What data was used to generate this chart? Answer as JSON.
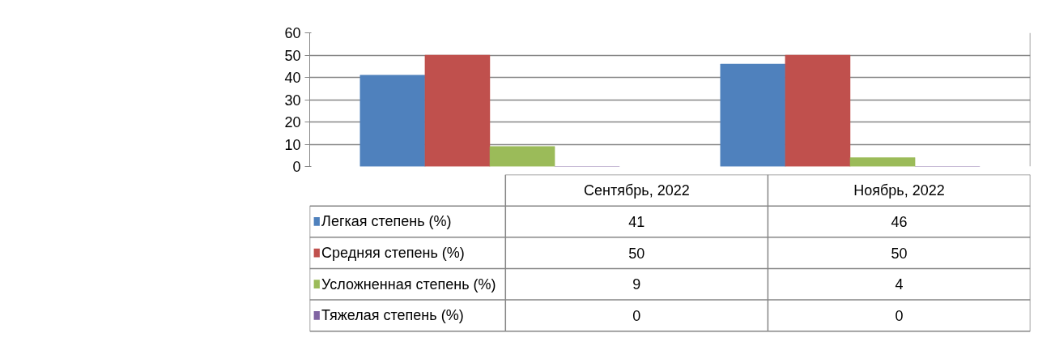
{
  "chart_data": {
    "type": "bar",
    "categories": [
      "Сентябрь, 2022",
      "Ноябрь, 2022"
    ],
    "series": [
      {
        "name": "Легкая степень (%)",
        "color": "#4f81bd",
        "values": [
          41,
          46
        ]
      },
      {
        "name": "Средняя степень (%)",
        "color": "#c0504d",
        "values": [
          50,
          50
        ]
      },
      {
        "name": "Усложненная степень (%)",
        "color": "#9bbb59",
        "values": [
          9,
          4
        ]
      },
      {
        "name": "Тяжелая степень  (%)",
        "color": "#8064a2",
        "values": [
          0,
          0
        ]
      }
    ],
    "ylim": [
      0,
      60
    ],
    "yticks": [
      0,
      10,
      20,
      30,
      40,
      50,
      60
    ],
    "grid": "y",
    "legend": "bottom",
    "data_labels": true
  }
}
